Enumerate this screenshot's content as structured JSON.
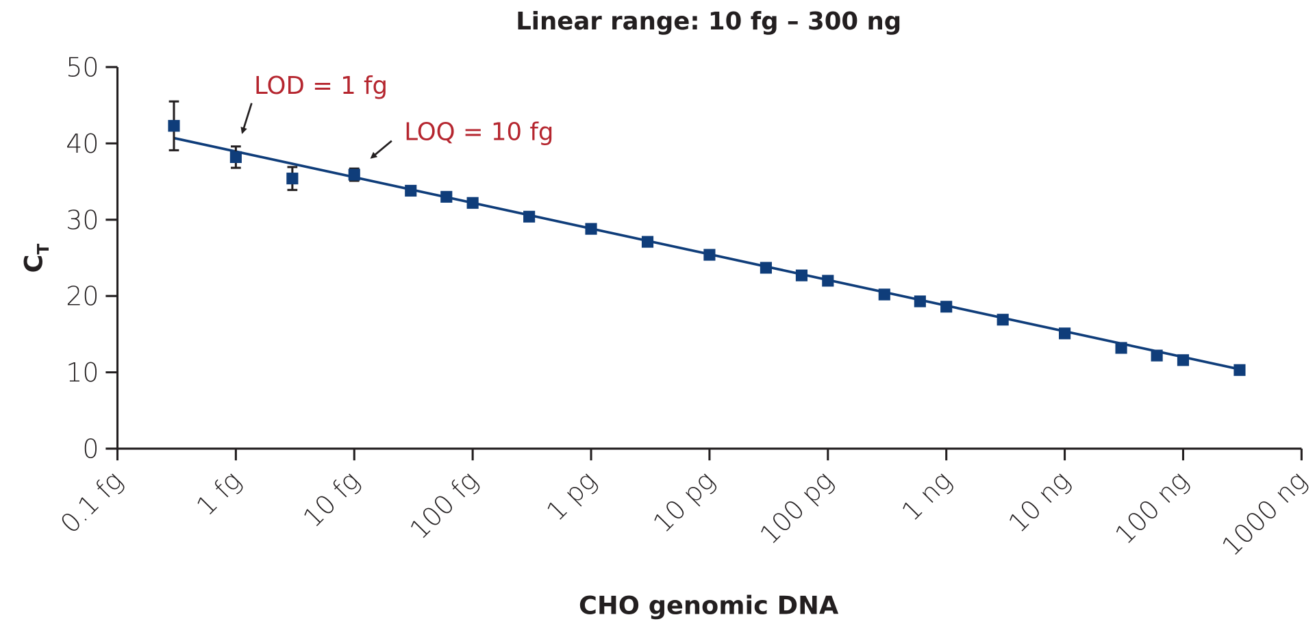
{
  "chart_data": {
    "type": "scatter",
    "title": "Linear range: 10 fg – 300 ng",
    "xlabel": "CHO genomic DNA",
    "ylabel": "C",
    "ylabel_subscript": "T",
    "x_scale": "log",
    "x_unit": "fg",
    "xlim": [
      0.1,
      1000000000
    ],
    "ylim": [
      0,
      50
    ],
    "x_ticks": [
      0.1,
      1,
      10,
      100,
      1000,
      10000,
      100000,
      1000000,
      10000000,
      100000000,
      1000000000
    ],
    "x_tick_labels": [
      "0.1 fg",
      "1 fg",
      "10 fg",
      "100 fg",
      "1 pg",
      "10 pg",
      "100 pg",
      "1 ng",
      "10 ng",
      "100 ng",
      "1000 ng"
    ],
    "y_ticks": [
      0,
      10,
      20,
      30,
      40,
      50
    ],
    "y_tick_labels": [
      "0",
      "10",
      "20",
      "30",
      "40",
      "50"
    ],
    "grid": false,
    "marker_color": "#0f3d7a",
    "line_color": "#0f3d7a",
    "annotation_color": "#b5262f",
    "points": [
      {
        "x": 0.3,
        "y": 42.3,
        "err": 3.2
      },
      {
        "x": 1,
        "y": 38.2,
        "err": 1.4
      },
      {
        "x": 3,
        "y": 35.4,
        "err": 1.5
      },
      {
        "x": 10,
        "y": 35.9,
        "err": 0.8
      },
      {
        "x": 30,
        "y": 33.8
      },
      {
        "x": 60,
        "y": 33.0
      },
      {
        "x": 100,
        "y": 32.2
      },
      {
        "x": 300,
        "y": 30.4
      },
      {
        "x": 1000,
        "y": 28.8
      },
      {
        "x": 3000,
        "y": 27.1
      },
      {
        "x": 10000,
        "y": 25.4
      },
      {
        "x": 30000,
        "y": 23.7
      },
      {
        "x": 60000,
        "y": 22.7
      },
      {
        "x": 100000,
        "y": 22.0
      },
      {
        "x": 300000,
        "y": 20.2
      },
      {
        "x": 600000,
        "y": 19.3
      },
      {
        "x": 1000000,
        "y": 18.6
      },
      {
        "x": 3000000,
        "y": 16.9
      },
      {
        "x": 10000000,
        "y": 15.1
      },
      {
        "x": 30000000,
        "y": 13.2
      },
      {
        "x": 60000000,
        "y": 12.2
      },
      {
        "x": 100000000,
        "y": 11.6
      },
      {
        "x": 300000000,
        "y": 10.3
      }
    ],
    "fit_line": {
      "x": [
        0.3,
        300000000
      ],
      "y": [
        40.7,
        10.4
      ]
    },
    "annotations": [
      {
        "text": "LOD = 1 fg",
        "x": 1,
        "y": 38.2
      },
      {
        "text": "LOQ = 10 fg",
        "x": 10,
        "y": 35.9
      }
    ]
  }
}
